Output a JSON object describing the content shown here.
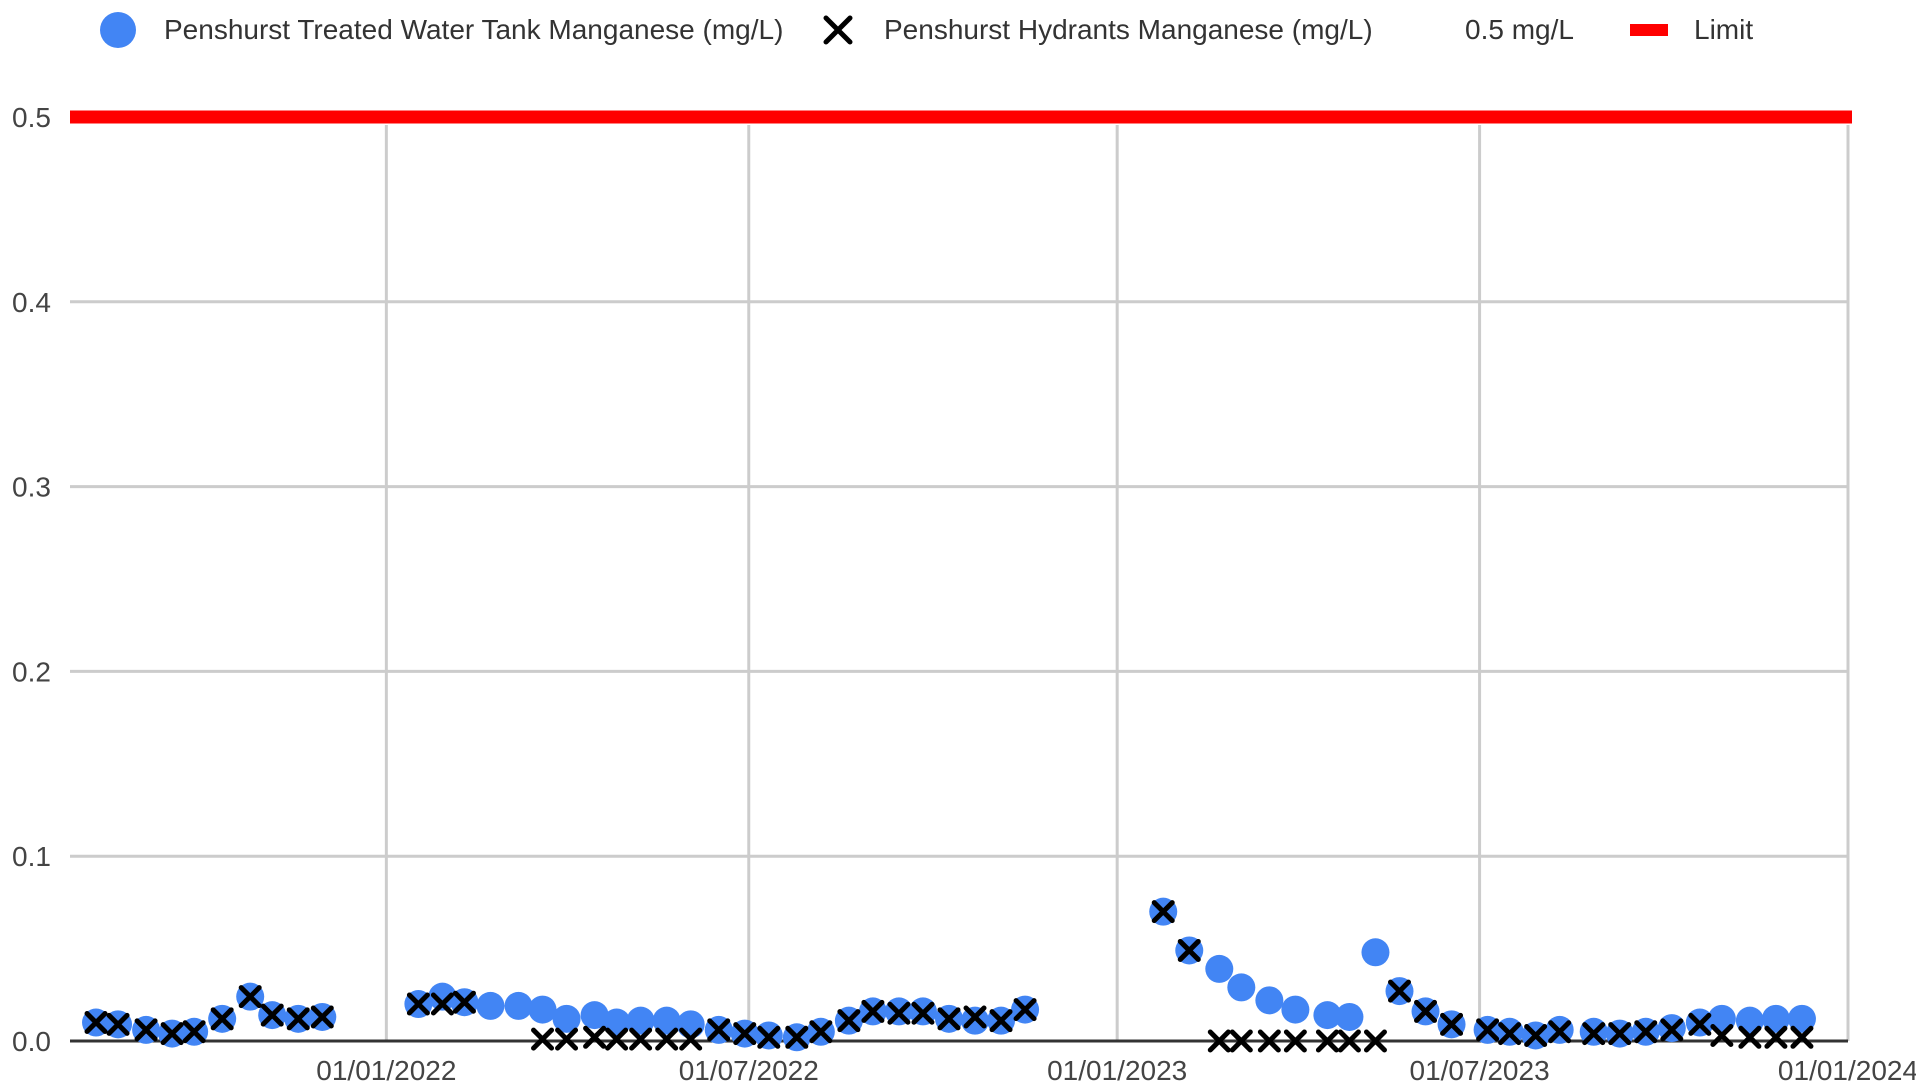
{
  "legend": {
    "series1": "Penshurst Treated Water Tank Manganese (mg/L)",
    "series2": "Penshurst Hydrants Manganese (mg/L)",
    "value_label": "0.5 mg/L",
    "limit": "Limit"
  },
  "colors": {
    "tank": "#4285f4",
    "hydrant": "#000000",
    "limit": "#ff0000",
    "grid": "#cccccc",
    "baseline": "#333333"
  },
  "chart_data": {
    "type": "scatter",
    "title": "",
    "xlabel": "",
    "ylabel": "",
    "xlim": [
      "2021-07-27",
      "2024-01-01"
    ],
    "ylim": [
      0,
      0.5
    ],
    "y_ticks": [
      "0.0",
      "0.1",
      "0.2",
      "0.3",
      "0.4",
      "0.5"
    ],
    "x_ticks": [
      "01/01/2022",
      "01/07/2022",
      "01/01/2023",
      "01/07/2023",
      "01/01/2024"
    ],
    "x_tick_dates": [
      "2022-01-01",
      "2022-07-01",
      "2023-01-01",
      "2023-07-01",
      "2024-01-01"
    ],
    "grid": true,
    "legend_position": "top",
    "limit_line": {
      "label": "Limit",
      "value": 0.5,
      "value_label": "0.5 mg/L"
    },
    "series": [
      {
        "name": "Penshurst Treated Water Tank Manganese (mg/L)",
        "marker": "circle",
        "points": [
          [
            "2021-08-09",
            0.01
          ],
          [
            "2021-08-20",
            0.009
          ],
          [
            "2021-09-03",
            0.006
          ],
          [
            "2021-09-16",
            0.004
          ],
          [
            "2021-09-27",
            0.005
          ],
          [
            "2021-10-11",
            0.012
          ],
          [
            "2021-10-25",
            0.024
          ],
          [
            "2021-11-05",
            0.014
          ],
          [
            "2021-11-18",
            0.012
          ],
          [
            "2021-11-30",
            0.013
          ],
          [
            "2022-01-17",
            0.02
          ],
          [
            "2022-01-29",
            0.024
          ],
          [
            "2022-02-09",
            0.021
          ],
          [
            "2022-02-22",
            0.019
          ],
          [
            "2022-03-08",
            0.019
          ],
          [
            "2022-03-20",
            0.017
          ],
          [
            "2022-04-01",
            0.012
          ],
          [
            "2022-04-15",
            0.014
          ],
          [
            "2022-04-26",
            0.01
          ],
          [
            "2022-05-08",
            0.011
          ],
          [
            "2022-05-21",
            0.011
          ],
          [
            "2022-06-02",
            0.009
          ],
          [
            "2022-06-16",
            0.006
          ],
          [
            "2022-06-29",
            0.004
          ],
          [
            "2022-07-11",
            0.003
          ],
          [
            "2022-07-25",
            0.002
          ],
          [
            "2022-08-06",
            0.005
          ],
          [
            "2022-08-20",
            0.011
          ],
          [
            "2022-09-01",
            0.016
          ],
          [
            "2022-09-14",
            0.016
          ],
          [
            "2022-09-26",
            0.016
          ],
          [
            "2022-10-09",
            0.012
          ],
          [
            "2022-10-22",
            0.011
          ],
          [
            "2022-11-04",
            0.011
          ],
          [
            "2022-11-16",
            0.017
          ],
          [
            "2023-01-24",
            0.07
          ],
          [
            "2023-02-06",
            0.049
          ],
          [
            "2023-02-21",
            0.039
          ],
          [
            "2023-03-04",
            0.029
          ],
          [
            "2023-03-18",
            0.022
          ],
          [
            "2023-03-31",
            0.017
          ],
          [
            "2023-04-16",
            0.014
          ],
          [
            "2023-04-27",
            0.013
          ],
          [
            "2023-05-10",
            0.048
          ],
          [
            "2023-05-22",
            0.027
          ],
          [
            "2023-06-04",
            0.016
          ],
          [
            "2023-06-17",
            0.009
          ],
          [
            "2023-07-05",
            0.006
          ],
          [
            "2023-07-16",
            0.005
          ],
          [
            "2023-07-29",
            0.003
          ],
          [
            "2023-08-10",
            0.006
          ],
          [
            "2023-08-27",
            0.005
          ],
          [
            "2023-09-09",
            0.004
          ],
          [
            "2023-09-22",
            0.005
          ],
          [
            "2023-10-05",
            0.007
          ],
          [
            "2023-10-19",
            0.01
          ],
          [
            "2023-10-30",
            0.012
          ],
          [
            "2023-11-13",
            0.011
          ],
          [
            "2023-11-26",
            0.012
          ],
          [
            "2023-12-09",
            0.012
          ]
        ]
      },
      {
        "name": "Penshurst Hydrants Manganese (mg/L)",
        "marker": "x",
        "points": [
          [
            "2021-08-09",
            0.01
          ],
          [
            "2021-08-20",
            0.009
          ],
          [
            "2021-09-03",
            0.006
          ],
          [
            "2021-09-16",
            0.004
          ],
          [
            "2021-09-27",
            0.005
          ],
          [
            "2021-10-11",
            0.012
          ],
          [
            "2021-10-25",
            0.024
          ],
          [
            "2021-11-05",
            0.014
          ],
          [
            "2021-11-18",
            0.012
          ],
          [
            "2021-11-30",
            0.013
          ],
          [
            "2022-01-17",
            0.02
          ],
          [
            "2022-01-29",
            0.02
          ],
          [
            "2022-02-09",
            0.021
          ],
          [
            "2022-03-20",
            0.001
          ],
          [
            "2022-04-01",
            0.001
          ],
          [
            "2022-04-15",
            0.002
          ],
          [
            "2022-04-26",
            0.001
          ],
          [
            "2022-05-08",
            0.001
          ],
          [
            "2022-05-21",
            0.001
          ],
          [
            "2022-06-02",
            0.001
          ],
          [
            "2022-06-16",
            0.006
          ],
          [
            "2022-06-29",
            0.004
          ],
          [
            "2022-07-11",
            0.002
          ],
          [
            "2022-07-25",
            0.002
          ],
          [
            "2022-08-06",
            0.005
          ],
          [
            "2022-08-20",
            0.011
          ],
          [
            "2022-09-01",
            0.016
          ],
          [
            "2022-09-14",
            0.015
          ],
          [
            "2022-09-26",
            0.015
          ],
          [
            "2022-10-09",
            0.012
          ],
          [
            "2022-10-22",
            0.013
          ],
          [
            "2022-11-04",
            0.011
          ],
          [
            "2022-11-16",
            0.017
          ],
          [
            "2023-01-24",
            0.07
          ],
          [
            "2023-02-06",
            0.049
          ],
          [
            "2023-02-21",
            0.0
          ],
          [
            "2023-03-04",
            0.0
          ],
          [
            "2023-03-18",
            0.0
          ],
          [
            "2023-03-31",
            0.0
          ],
          [
            "2023-04-16",
            0.0
          ],
          [
            "2023-04-27",
            0.0
          ],
          [
            "2023-05-10",
            0.0
          ],
          [
            "2023-05-22",
            0.027
          ],
          [
            "2023-06-04",
            0.016
          ],
          [
            "2023-06-17",
            0.009
          ],
          [
            "2023-07-05",
            0.006
          ],
          [
            "2023-07-16",
            0.004
          ],
          [
            "2023-07-29",
            0.003
          ],
          [
            "2023-08-10",
            0.005
          ],
          [
            "2023-08-27",
            0.004
          ],
          [
            "2023-09-09",
            0.004
          ],
          [
            "2023-09-22",
            0.005
          ],
          [
            "2023-10-05",
            0.006
          ],
          [
            "2023-10-19",
            0.009
          ],
          [
            "2023-10-30",
            0.003
          ],
          [
            "2023-11-13",
            0.002
          ],
          [
            "2023-11-26",
            0.002
          ],
          [
            "2023-12-09",
            0.002
          ]
        ]
      }
    ]
  }
}
